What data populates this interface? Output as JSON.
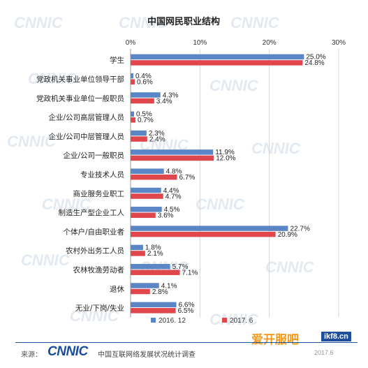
{
  "chart_data": {
    "type": "bar",
    "orientation": "horizontal",
    "title": "中国网民职业结构",
    "x_ticks": [
      "0%",
      "10%",
      "20%",
      "30%"
    ],
    "xlim": [
      0,
      30
    ],
    "grid": true,
    "legend_position": "bottom",
    "categories": [
      "学生",
      "党政机关事业单位领导干部",
      "党政机关事业单位一般职员",
      "企业/公司高层管理人员",
      "企业/公司中层管理人员",
      "企业/公司一般职员",
      "专业技术人员",
      "商业服务业职工",
      "制造生产型企业工人",
      "个体户/自由职业者",
      "农村外出务工人员",
      "农林牧渔劳动者",
      "退休",
      "无业/下岗/失业"
    ],
    "series": [
      {
        "name": "2016. 12",
        "color": "#5b86c5",
        "values": [
          25.0,
          0.4,
          4.3,
          0.5,
          2.3,
          11.9,
          4.8,
          4.4,
          4.5,
          22.7,
          1.8,
          5.7,
          4.1,
          6.6
        ],
        "labels": [
          "25.0%",
          "0.4%",
          "4.3%",
          "0.5%",
          "2.3%",
          "11.9%",
          "4.8%",
          "4.4%",
          "4.5%",
          "22.7%",
          "1.8%",
          "5.7%",
          "4.1%",
          "6.6%"
        ]
      },
      {
        "name": "2017. 6",
        "color": "#e0474c",
        "values": [
          24.8,
          0.6,
          3.4,
          0.7,
          2.4,
          12.0,
          6.7,
          4.7,
          3.6,
          20.9,
          2.1,
          7.1,
          2.8,
          6.5
        ],
        "labels": [
          "24.8%",
          "0.6%",
          "3.4%",
          "0.7%",
          "2.4%",
          "12.0%",
          "6.7%",
          "4.7%",
          "3.6%",
          "20.9%",
          "2.1%",
          "7.1%",
          "2.8%",
          "6.5%"
        ]
      }
    ]
  },
  "footer": {
    "source_label": "来源：",
    "logo_text": "CNNIC",
    "report_name": "中国互联网络发展状况统计调查",
    "date": "2017.6"
  },
  "watermark": {
    "text": "CNNIC",
    "site_zh": "爱开服吧",
    "site_en": "ikf8.cn"
  }
}
